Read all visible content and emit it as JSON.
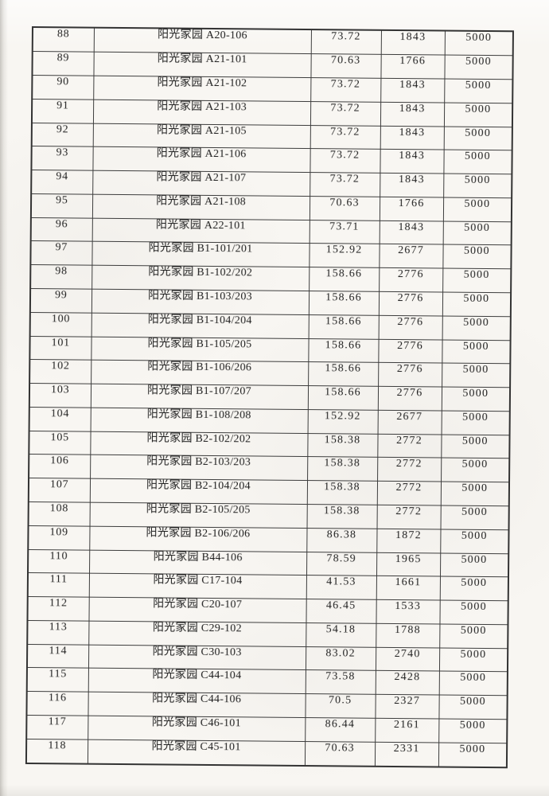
{
  "colors": {
    "paper": "#f8f6f2",
    "line": "#3d3d3d",
    "ink": "#1e1e1e"
  },
  "table": {
    "rows": [
      [
        "88",
        "阳光家园 A20-106",
        "73.72",
        "1843",
        "5000"
      ],
      [
        "89",
        "阳光家园 A21-101",
        "70.63",
        "1766",
        "5000"
      ],
      [
        "90",
        "阳光家园 A21-102",
        "73.72",
        "1843",
        "5000"
      ],
      [
        "91",
        "阳光家园 A21-103",
        "73.72",
        "1843",
        "5000"
      ],
      [
        "92",
        "阳光家园 A21-105",
        "73.72",
        "1843",
        "5000"
      ],
      [
        "93",
        "阳光家园 A21-106",
        "73.72",
        "1843",
        "5000"
      ],
      [
        "94",
        "阳光家园 A21-107",
        "73.72",
        "1843",
        "5000"
      ],
      [
        "95",
        "阳光家园 A21-108",
        "70.63",
        "1766",
        "5000"
      ],
      [
        "96",
        "阳光家园 A22-101",
        "73.71",
        "1843",
        "5000"
      ],
      [
        "97",
        "阳光家园 B1-101/201",
        "152.92",
        "2677",
        "5000"
      ],
      [
        "98",
        "阳光家园 B1-102/202",
        "158.66",
        "2776",
        "5000"
      ],
      [
        "99",
        "阳光家园 B1-103/203",
        "158.66",
        "2776",
        "5000"
      ],
      [
        "100",
        "阳光家园 B1-104/204",
        "158.66",
        "2776",
        "5000"
      ],
      [
        "101",
        "阳光家园 B1-105/205",
        "158.66",
        "2776",
        "5000"
      ],
      [
        "102",
        "阳光家园 B1-106/206",
        "158.66",
        "2776",
        "5000"
      ],
      [
        "103",
        "阳光家园 B1-107/207",
        "158.66",
        "2776",
        "5000"
      ],
      [
        "104",
        "阳光家园 B1-108/208",
        "152.92",
        "2677",
        "5000"
      ],
      [
        "105",
        "阳光家园 B2-102/202",
        "158.38",
        "2772",
        "5000"
      ],
      [
        "106",
        "阳光家园 B2-103/203",
        "158.38",
        "2772",
        "5000"
      ],
      [
        "107",
        "阳光家园 B2-104/204",
        "158.38",
        "2772",
        "5000"
      ],
      [
        "108",
        "阳光家园 B2-105/205",
        "158.38",
        "2772",
        "5000"
      ],
      [
        "109",
        "阳光家园 B2-106/206",
        "86.38",
        "1872",
        "5000"
      ],
      [
        "110",
        "阳光家园 B44-106",
        "78.59",
        "1965",
        "5000"
      ],
      [
        "111",
        "阳光家园 C17-104",
        "41.53",
        "1661",
        "5000"
      ],
      [
        "112",
        "阳光家园 C20-107",
        "46.45",
        "1533",
        "5000"
      ],
      [
        "113",
        "阳光家园 C29-102",
        "54.18",
        "1788",
        "5000"
      ],
      [
        "114",
        "阳光家园 C30-103",
        "83.02",
        "2740",
        "5000"
      ],
      [
        "115",
        "阳光家园 C44-104",
        "73.58",
        "2428",
        "5000"
      ],
      [
        "116",
        "阳光家园 C44-106",
        "70.5",
        "2327",
        "5000"
      ],
      [
        "117",
        "阳光家园 C46-101",
        "86.44",
        "2161",
        "5000"
      ],
      [
        "118",
        "阳光家园 C45-101",
        "70.63",
        "2331",
        "5000"
      ]
    ]
  }
}
